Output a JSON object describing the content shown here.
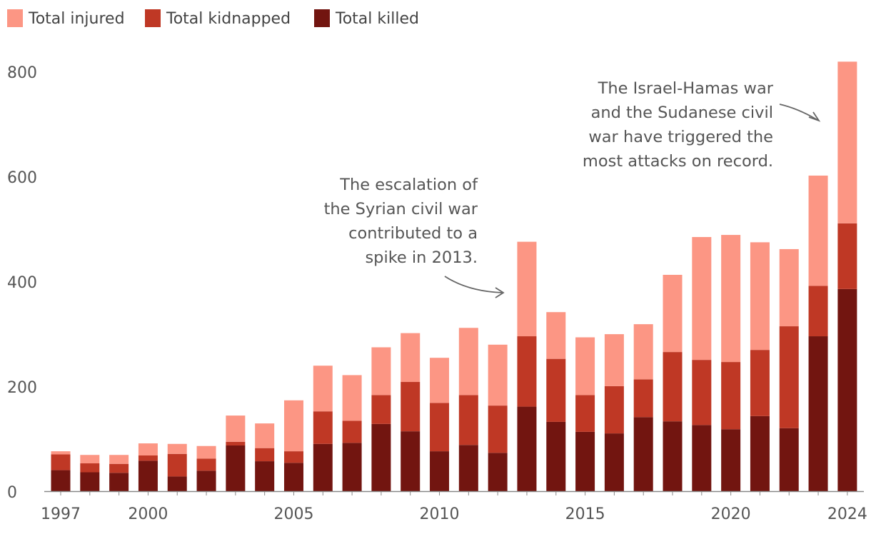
{
  "chart_data": {
    "type": "bar",
    "stacked": true,
    "title": "",
    "xlabel": "",
    "ylabel": "",
    "ylim": [
      0,
      820
    ],
    "yticks": [
      0,
      200,
      400,
      600,
      800
    ],
    "xtick_labels": [
      "1997",
      "2000",
      "2005",
      "2010",
      "2015",
      "2020",
      "2024"
    ],
    "categories": [
      "1997",
      "1998",
      "1999",
      "2000",
      "2001",
      "2002",
      "2003",
      "2004",
      "2005",
      "2006",
      "2007",
      "2008",
      "2009",
      "2010",
      "2011",
      "2012",
      "2013",
      "2014",
      "2015",
      "2016",
      "2017",
      "2018",
      "2019",
      "2020",
      "2021",
      "2022",
      "2023",
      "2024"
    ],
    "legend_position": "top-left",
    "series": [
      {
        "name": "Total killed",
        "color": "#721510",
        "values": [
          40,
          36,
          35,
          58,
          28,
          39,
          87,
          57,
          54,
          90,
          92,
          128,
          114,
          76,
          88,
          73,
          161,
          132,
          113,
          110,
          141,
          133,
          126,
          118,
          143,
          120,
          295,
          385
        ]
      },
      {
        "name": "Total kidnapped",
        "color": "#BF3825",
        "values": [
          30,
          17,
          17,
          10,
          43,
          23,
          7,
          25,
          22,
          62,
          42,
          55,
          94,
          92,
          95,
          90,
          134,
          120,
          70,
          90,
          72,
          132,
          124,
          128,
          126,
          194,
          96,
          125
        ]
      },
      {
        "name": "Total injured",
        "color": "#FC9684",
        "values": [
          6,
          16,
          17,
          23,
          19,
          24,
          50,
          47,
          97,
          87,
          87,
          91,
          93,
          86,
          128,
          116,
          180,
          89,
          110,
          99,
          105,
          147,
          234,
          242,
          205,
          147,
          210,
          308
        ]
      }
    ],
    "legend": [
      "Total injured",
      "Total kidnapped",
      "Total killed"
    ],
    "annotations": [
      {
        "target": "2013",
        "lines": [
          "The escalation of",
          "the Syrian civil war",
          "contributed to a",
          "spike in 2013."
        ]
      },
      {
        "target": "2024",
        "lines": [
          "The Israel-Hamas war",
          "and the Sudanese civil",
          "war have triggered the",
          "most attacks on record."
        ]
      }
    ]
  }
}
